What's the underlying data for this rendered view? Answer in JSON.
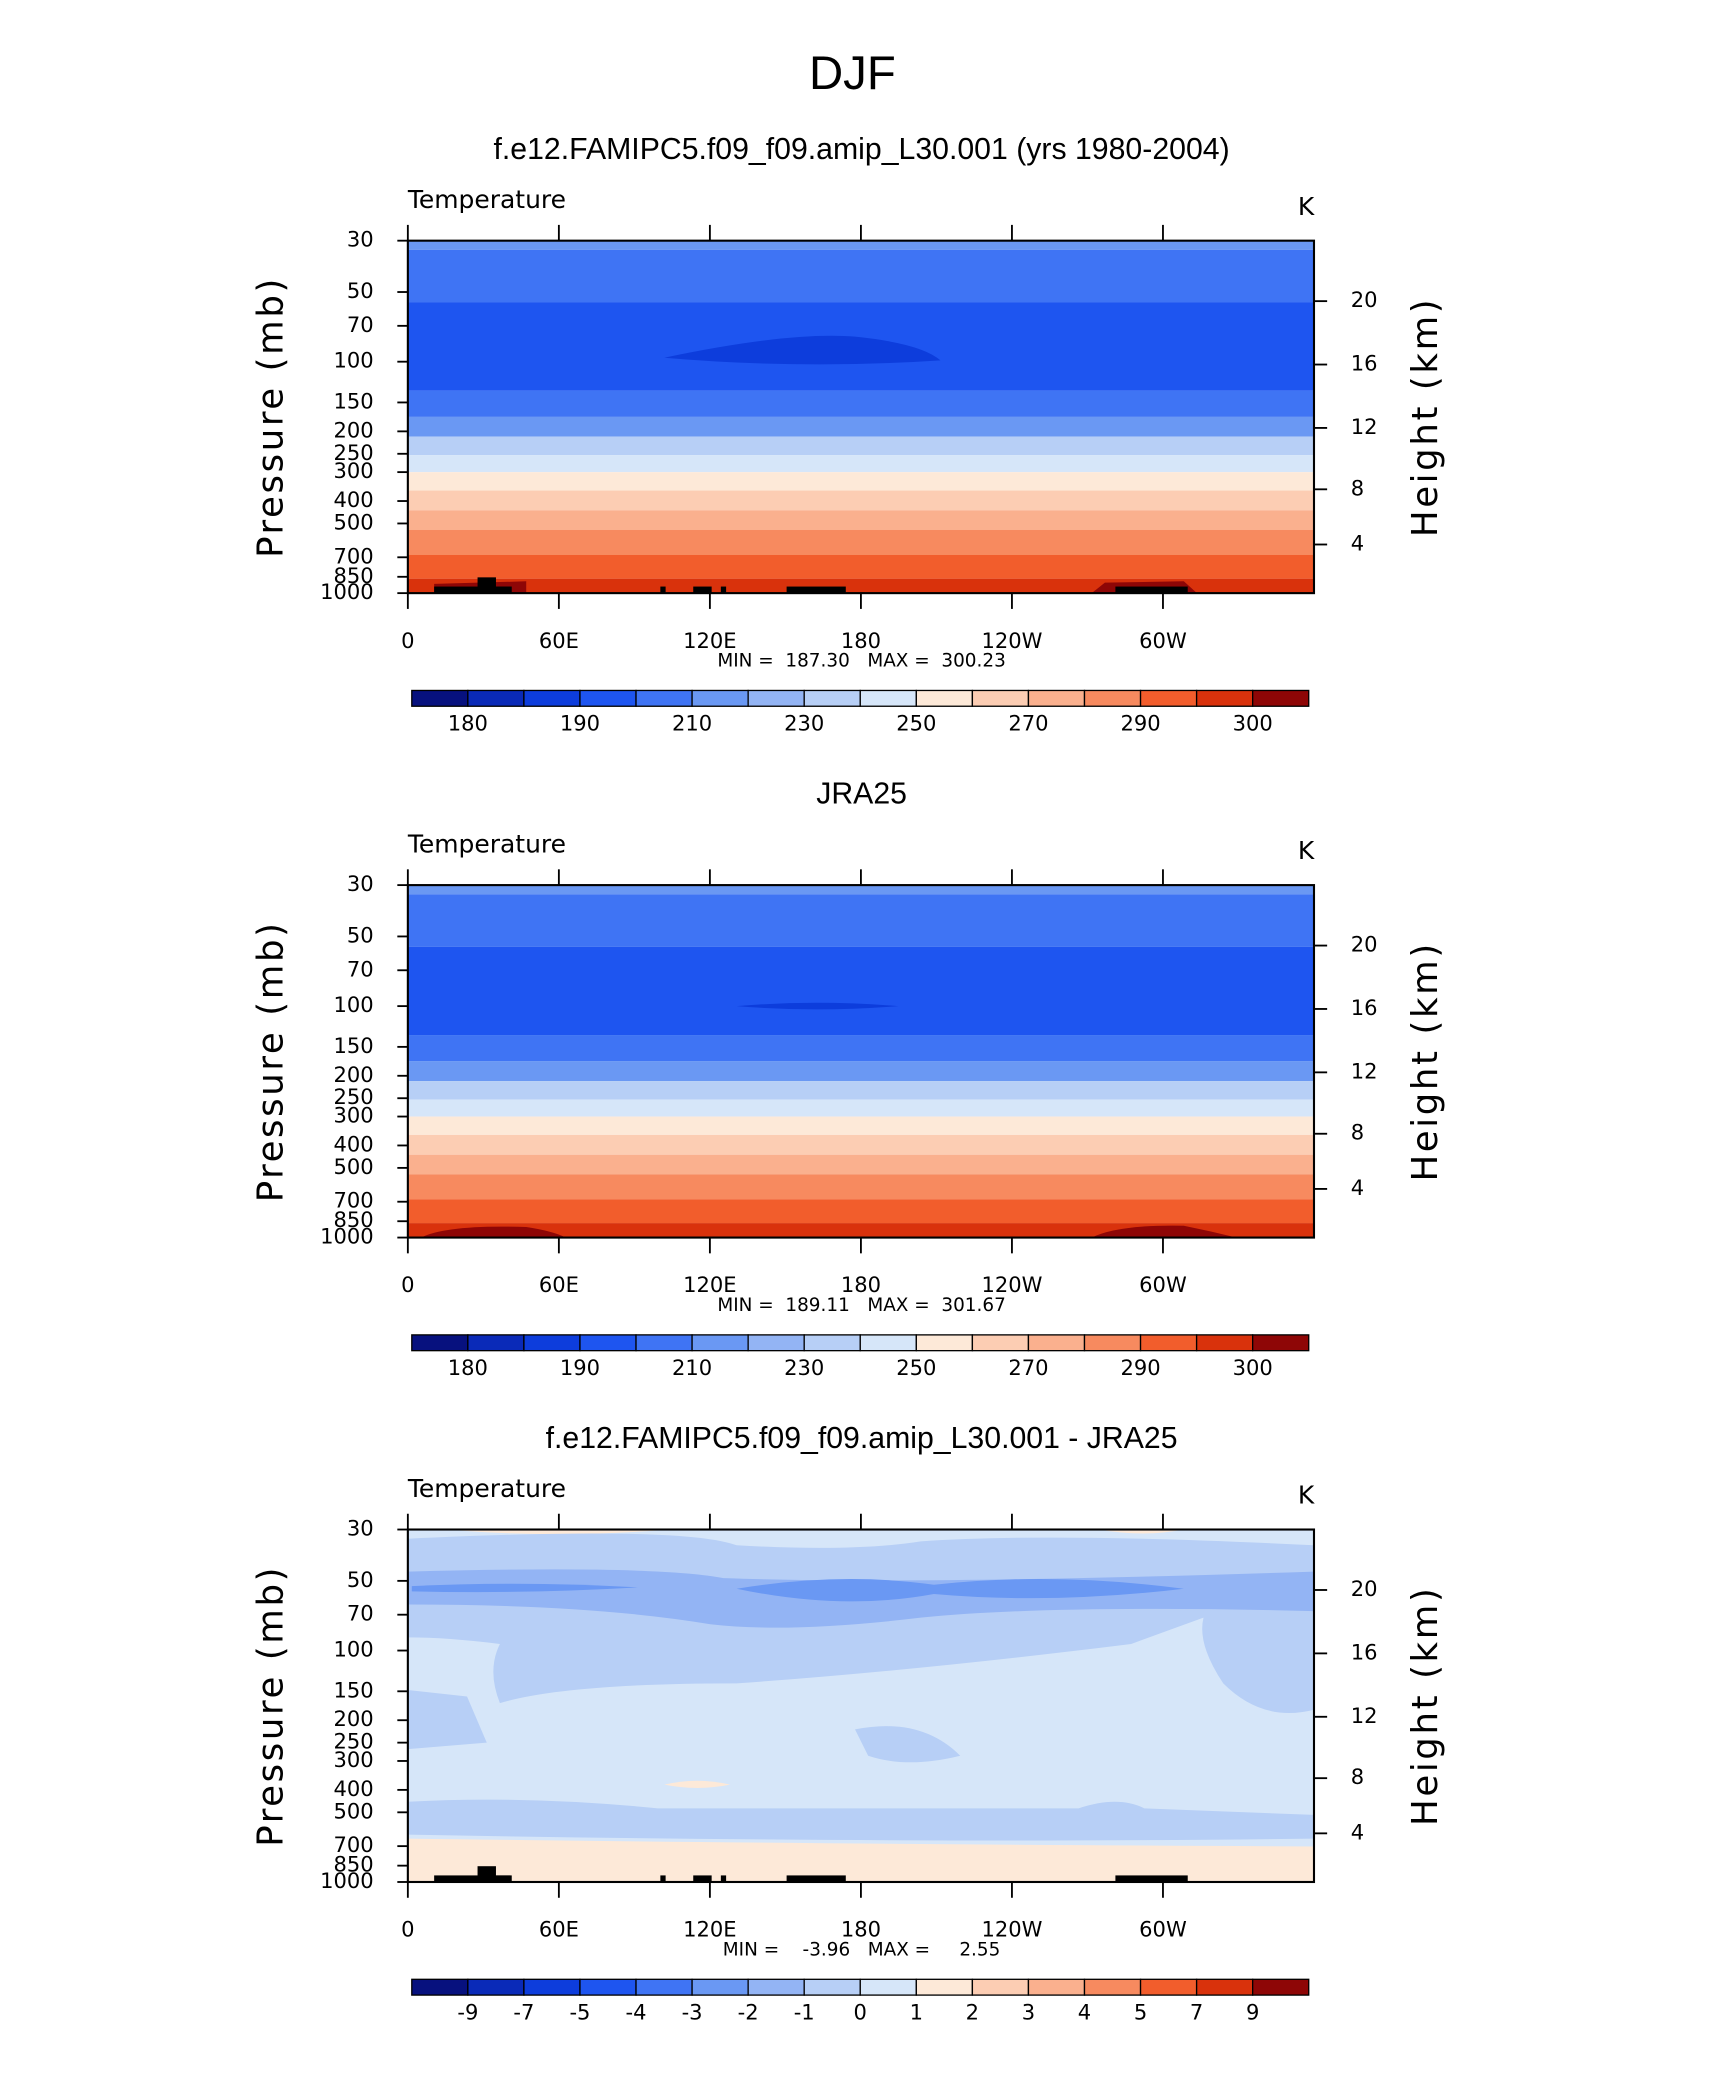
{
  "title": "DJF",
  "chart_data": [
    {
      "type": "contour",
      "title": "f.e12.FAMIPC5.f09_f09.amip_L30.001 (yrs 1980-2004)",
      "variable": "Temperature",
      "units": "K",
      "ylabel": "Pressure (mb)",
      "y2label": "Height (km)",
      "ylog": true,
      "ylim": [
        1000,
        30
      ],
      "yticks": [
        30,
        50,
        70,
        100,
        150,
        200,
        250,
        300,
        400,
        500,
        700,
        850,
        1000
      ],
      "y2ticks": [
        4,
        8,
        12,
        16,
        20
      ],
      "xlim": [
        0,
        360
      ],
      "xticks": [
        0,
        {
          "value": 60,
          "label": "60E"
        },
        {
          "value": 120,
          "label": "120E"
        },
        180,
        {
          "value": 240,
          "label": "120W"
        },
        {
          "value": 300,
          "label": "60W"
        }
      ],
      "min_max": "MIN =  187.30   MAX =  300.23",
      "colorbar": {
        "colors": [
          "#07117e",
          "#0a2ab8",
          "#0d3ddc",
          "#1e55f0",
          "#3f74f4",
          "#6a98f3",
          "#93b4f4",
          "#b7cff6",
          "#d6e6f9",
          "#fde9d8",
          "#fccdb3",
          "#fab08e",
          "#f78a5f",
          "#f25d2c",
          "#d9320c",
          "#8e0606"
        ],
        "levels": [
          180,
          null,
          190,
          null,
          210,
          null,
          230,
          null,
          250,
          null,
          270,
          null,
          290,
          null,
          300
        ]
      }
    },
    {
      "type": "contour",
      "title": "JRA25",
      "variable": "Temperature",
      "units": "K",
      "ylabel": "Pressure (mb)",
      "y2label": "Height (km)",
      "ylog": true,
      "ylim": [
        1000,
        30
      ],
      "yticks": [
        30,
        50,
        70,
        100,
        150,
        200,
        250,
        300,
        400,
        500,
        700,
        850,
        1000
      ],
      "y2ticks": [
        4,
        8,
        12,
        16,
        20
      ],
      "xlim": [
        0,
        360
      ],
      "xticks": [
        0,
        {
          "value": 60,
          "label": "60E"
        },
        {
          "value": 120,
          "label": "120E"
        },
        180,
        {
          "value": 240,
          "label": "120W"
        },
        {
          "value": 300,
          "label": "60W"
        }
      ],
      "min_max": "MIN =  189.11   MAX =  301.67",
      "colorbar": {
        "colors": [
          "#07117e",
          "#0a2ab8",
          "#0d3ddc",
          "#1e55f0",
          "#3f74f4",
          "#6a98f3",
          "#93b4f4",
          "#b7cff6",
          "#d6e6f9",
          "#fde9d8",
          "#fccdb3",
          "#fab08e",
          "#f78a5f",
          "#f25d2c",
          "#d9320c",
          "#8e0606"
        ],
        "levels": [
          180,
          null,
          190,
          null,
          210,
          null,
          230,
          null,
          250,
          null,
          270,
          null,
          290,
          null,
          300
        ]
      }
    },
    {
      "type": "contour",
      "title": "f.e12.FAMIPC5.f09_f09.amip_L30.001 - JRA25",
      "variable": "Temperature",
      "units": "K",
      "ylabel": "Pressure (mb)",
      "y2label": "Height (km)",
      "ylog": true,
      "ylim": [
        1000,
        30
      ],
      "yticks": [
        30,
        50,
        70,
        100,
        150,
        200,
        250,
        300,
        400,
        500,
        700,
        850,
        1000
      ],
      "y2ticks": [
        4,
        8,
        12,
        16,
        20
      ],
      "xlim": [
        0,
        360
      ],
      "xticks": [
        0,
        {
          "value": 60,
          "label": "60E"
        },
        {
          "value": 120,
          "label": "120E"
        },
        180,
        {
          "value": 240,
          "label": "120W"
        },
        {
          "value": 300,
          "label": "60W"
        }
      ],
      "min_max": "MIN =    -3.96   MAX =     2.55",
      "colorbar": {
        "colors": [
          "#07117e",
          "#0a2ab8",
          "#0d3ddc",
          "#1e55f0",
          "#3f74f4",
          "#6a98f3",
          "#93b4f4",
          "#b7cff6",
          "#d6e6f9",
          "#fde9d8",
          "#fccdb3",
          "#fab08e",
          "#f78a5f",
          "#f25d2c",
          "#d9320c",
          "#8e0606"
        ],
        "levels": [
          -9,
          -7,
          -5,
          -4,
          -3,
          -2,
          -1,
          0,
          1,
          2,
          3,
          4,
          5,
          7,
          9
        ]
      }
    }
  ]
}
